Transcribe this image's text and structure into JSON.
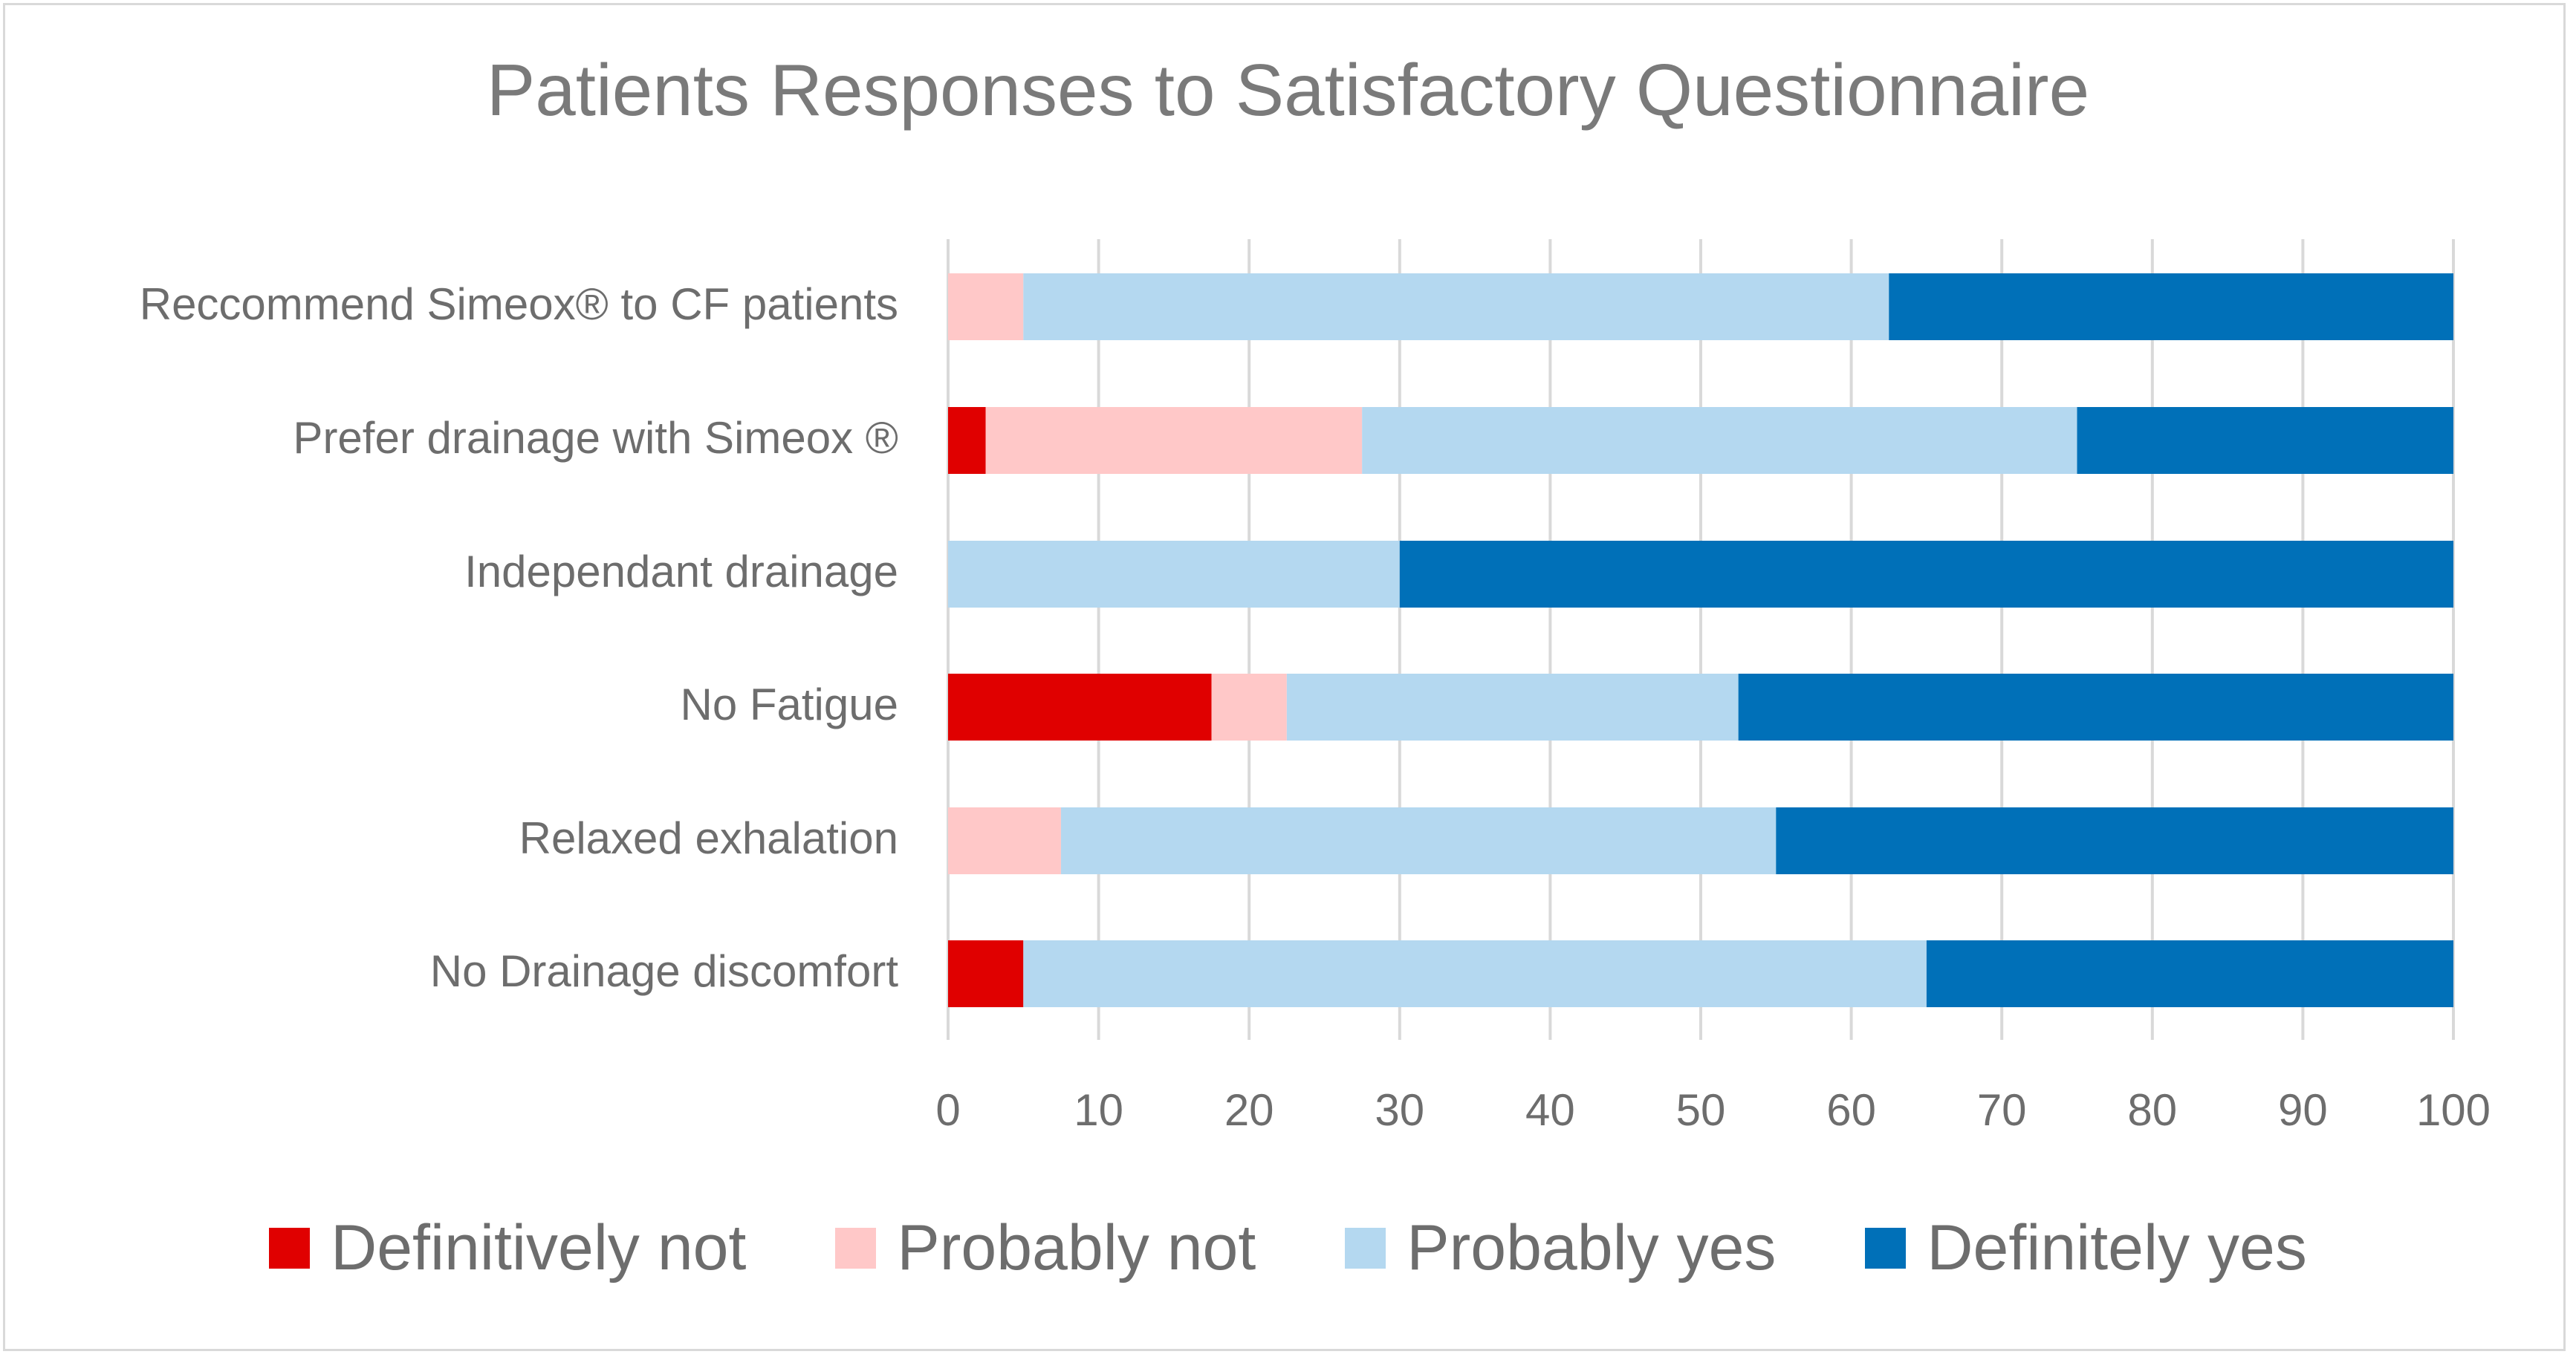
{
  "chart_data": {
    "type": "bar",
    "orientation": "horizontal",
    "stacked": true,
    "title": "Patients Responses to Satisfactory Questionnaire",
    "categories": [
      "Reccommend Simeox® to CF patients",
      "Prefer drainage with Simeox ®",
      "Independant drainage",
      "No Fatigue",
      "Relaxed exhalation",
      "No Drainage discomfort"
    ],
    "series": [
      {
        "name": "Definitively not",
        "color": "#e00000",
        "values": [
          0,
          2.5,
          0,
          17.5,
          0,
          5
        ]
      },
      {
        "name": "Probably not",
        "color": "#ffc8c8",
        "values": [
          5,
          25,
          0,
          5,
          7.5,
          0
        ]
      },
      {
        "name": "Probably yes",
        "color": "#b4d8f0",
        "values": [
          57.5,
          47.5,
          30,
          30,
          47.5,
          60
        ]
      },
      {
        "name": "Definitely yes",
        "color": "#0070b8",
        "values": [
          37.5,
          25,
          70,
          47.5,
          45,
          35
        ]
      }
    ],
    "xlim": [
      0,
      100
    ],
    "xticks": [
      "0",
      "10",
      "20",
      "30",
      "40",
      "50",
      "60",
      "70",
      "80",
      "90",
      "100"
    ],
    "grid": true,
    "legend_position": "bottom",
    "xlabel": "",
    "ylabel": ""
  }
}
